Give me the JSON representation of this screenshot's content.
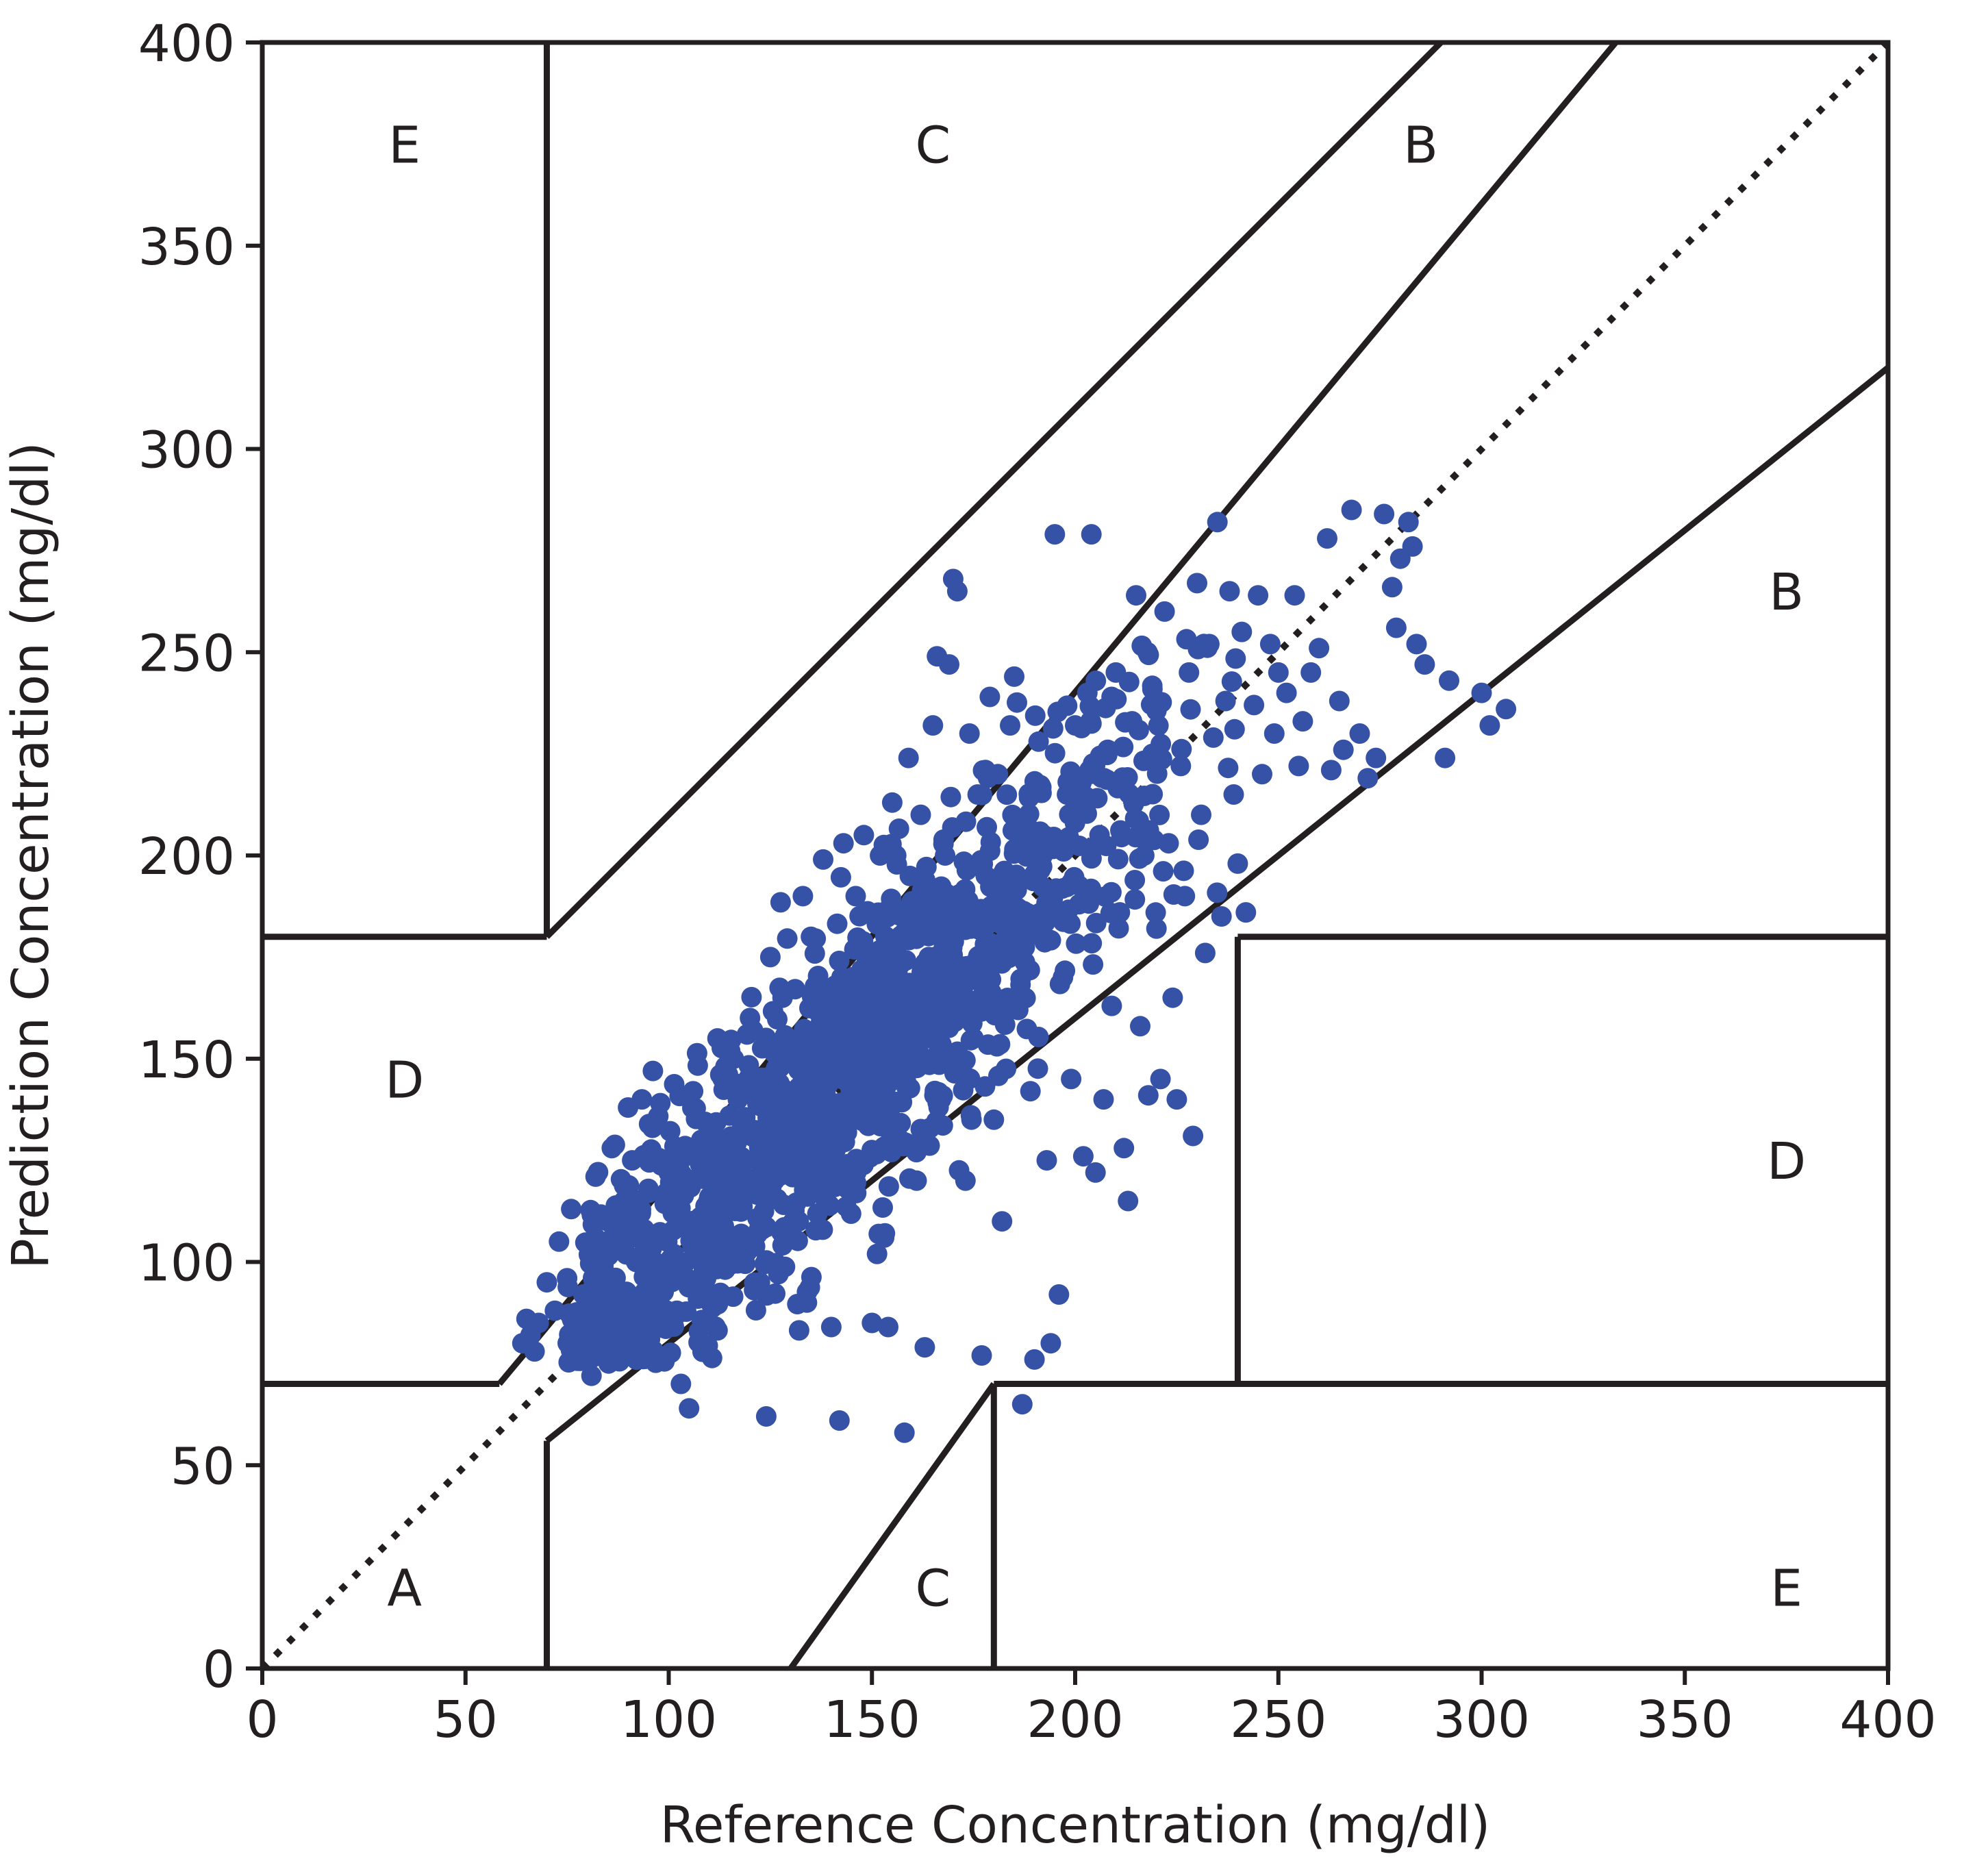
{
  "chart_data": {
    "type": "scatter",
    "title": "",
    "xlabel": "Reference Concentration (mg/dl)",
    "ylabel": "Prediction Concentration (mg/dl)",
    "xlim": [
      0,
      400
    ],
    "ylim": [
      0,
      400
    ],
    "xticks": [
      0,
      50,
      100,
      150,
      200,
      250,
      300,
      350,
      400
    ],
    "yticks": [
      0,
      50,
      100,
      150,
      200,
      250,
      300,
      350,
      400
    ],
    "grid": false,
    "colors": {
      "points": "#3652a6",
      "lines": "#231f20"
    },
    "identity_line": {
      "style": "dotted",
      "from": [
        0,
        0
      ],
      "to": [
        400,
        400
      ]
    },
    "zone_lines": [
      [
        [
          70,
          180
        ],
        [
          70,
          400
        ]
      ],
      [
        [
          0,
          180
        ],
        [
          70,
          180
        ]
      ],
      [
        [
          70,
          180
        ],
        [
          290,
          400
        ]
      ],
      [
        [
          70,
          84
        ],
        [
          333,
          400
        ]
      ],
      [
        [
          0,
          70
        ],
        [
          58.33,
          70
        ]
      ],
      [
        [
          58.33,
          70
        ],
        [
          70,
          84
        ]
      ],
      [
        [
          70,
          56
        ],
        [
          70,
          0
        ]
      ],
      [
        [
          70,
          56
        ],
        [
          400,
          320
        ]
      ],
      [
        [
          130,
          0
        ],
        [
          180,
          70
        ]
      ],
      [
        [
          180,
          70
        ],
        [
          180,
          0
        ]
      ],
      [
        [
          180,
          70
        ],
        [
          400,
          70
        ]
      ],
      [
        [
          240,
          70
        ],
        [
          240,
          180
        ]
      ],
      [
        [
          240,
          180
        ],
        [
          400,
          180
        ]
      ]
    ],
    "zone_labels": [
      {
        "text": "E",
        "x": 35,
        "y": 375
      },
      {
        "text": "C",
        "x": 165,
        "y": 375
      },
      {
        "text": "B",
        "x": 285,
        "y": 375
      },
      {
        "text": "B",
        "x": 375,
        "y": 265
      },
      {
        "text": "D",
        "x": 35,
        "y": 145
      },
      {
        "text": "D",
        "x": 375,
        "y": 125
      },
      {
        "text": "A",
        "x": 35,
        "y": 20
      },
      {
        "text": "C",
        "x": 165,
        "y": 20
      },
      {
        "text": "E",
        "x": 375,
        "y": 20
      }
    ],
    "points_manual": [
      [
        64,
        80
      ],
      [
        66,
        82
      ],
      [
        65,
        86
      ],
      [
        67,
        78
      ],
      [
        68,
        85
      ],
      [
        70,
        95
      ],
      [
        72,
        88
      ],
      [
        73,
        105
      ],
      [
        75,
        96
      ],
      [
        76,
        113
      ],
      [
        78,
        80
      ],
      [
        79,
        92
      ],
      [
        80,
        88
      ],
      [
        81,
        72
      ],
      [
        82,
        121
      ],
      [
        84,
        98
      ],
      [
        85,
        110
      ],
      [
        86,
        128
      ],
      [
        87,
        92
      ],
      [
        88,
        104
      ],
      [
        89,
        115
      ],
      [
        90,
        138
      ],
      [
        91,
        125
      ],
      [
        92,
        100
      ],
      [
        94,
        108
      ],
      [
        95,
        118
      ],
      [
        96,
        133
      ],
      [
        98,
        96
      ],
      [
        100,
        122
      ],
      [
        101,
        112
      ],
      [
        102,
        88
      ],
      [
        103,
        70
      ],
      [
        104,
        126
      ],
      [
        105,
        64
      ],
      [
        106,
        142
      ],
      [
        108,
        130
      ],
      [
        110,
        116
      ],
      [
        111,
        92
      ],
      [
        112,
        155
      ],
      [
        113,
        103
      ],
      [
        115,
        136
      ],
      [
        116,
        150
      ],
      [
        118,
        120
      ],
      [
        120,
        160
      ],
      [
        122,
        140
      ],
      [
        123,
        108
      ],
      [
        124,
        62
      ],
      [
        125,
        175
      ],
      [
        126,
        128
      ],
      [
        127,
        97
      ],
      [
        128,
        165
      ],
      [
        130,
        152
      ],
      [
        132,
        110
      ],
      [
        133,
        190
      ],
      [
        134,
        90
      ],
      [
        135,
        180
      ],
      [
        137,
        145
      ],
      [
        138,
        199
      ],
      [
        139,
        126
      ],
      [
        140,
        84
      ],
      [
        141,
        168
      ],
      [
        142,
        61
      ],
      [
        143,
        203
      ],
      [
        144,
        118
      ],
      [
        145,
        155
      ],
      [
        146,
        190
      ],
      [
        147,
        136
      ],
      [
        148,
        205
      ],
      [
        149,
        172
      ],
      [
        150,
        85
      ],
      [
        151,
        148
      ],
      [
        152,
        200
      ],
      [
        153,
        106
      ],
      [
        154,
        84
      ],
      [
        155,
        213
      ],
      [
        156,
        165
      ],
      [
        157,
        130
      ],
      [
        158,
        58
      ],
      [
        159,
        224
      ],
      [
        160,
        185
      ],
      [
        161,
        120
      ],
      [
        162,
        210
      ],
      [
        163,
        79
      ],
      [
        164,
        175
      ],
      [
        165,
        232
      ],
      [
        166,
        249
      ],
      [
        167,
        140
      ],
      [
        168,
        200
      ],
      [
        169,
        247
      ],
      [
        170,
        268
      ],
      [
        171,
        265
      ],
      [
        172,
        190
      ],
      [
        173,
        120
      ],
      [
        174,
        230
      ],
      [
        175,
        155
      ],
      [
        176,
        215
      ],
      [
        177,
        77
      ],
      [
        178,
        195
      ],
      [
        179,
        239
      ],
      [
        180,
        135
      ],
      [
        181,
        220
      ],
      [
        182,
        110
      ],
      [
        183,
        185
      ],
      [
        184,
        232
      ],
      [
        185,
        244
      ],
      [
        186,
        162
      ],
      [
        187,
        65
      ],
      [
        188,
        208
      ],
      [
        189,
        142
      ],
      [
        190,
        76
      ],
      [
        191,
        228
      ],
      [
        192,
        200
      ],
      [
        193,
        125
      ],
      [
        194,
        80
      ],
      [
        195,
        279
      ],
      [
        196,
        92
      ],
      [
        197,
        170
      ],
      [
        198,
        215
      ],
      [
        199,
        145
      ],
      [
        200,
        232
      ],
      [
        201,
        188
      ],
      [
        202,
        126
      ],
      [
        203,
        240
      ],
      [
        204,
        279
      ],
      [
        205,
        122
      ],
      [
        206,
        205
      ],
      [
        207,
        140
      ],
      [
        208,
        226
      ],
      [
        209,
        163
      ],
      [
        210,
        245
      ],
      [
        211,
        186
      ],
      [
        212,
        128
      ],
      [
        213,
        115
      ],
      [
        214,
        233
      ],
      [
        215,
        264
      ],
      [
        216,
        158
      ],
      [
        217,
        200
      ],
      [
        218,
        141
      ],
      [
        219,
        225
      ],
      [
        220,
        182
      ],
      [
        221,
        145
      ],
      [
        222,
        260
      ],
      [
        223,
        203
      ],
      [
        224,
        165
      ],
      [
        225,
        140
      ],
      [
        226,
        222
      ],
      [
        227,
        190
      ],
      [
        228,
        245
      ],
      [
        229,
        131
      ],
      [
        230,
        267
      ],
      [
        231,
        210
      ],
      [
        232,
        176
      ],
      [
        233,
        252
      ],
      [
        234,
        229
      ],
      [
        235,
        282
      ],
      [
        236,
        185
      ],
      [
        237,
        238
      ],
      [
        238,
        265
      ],
      [
        239,
        215
      ],
      [
        240,
        198
      ],
      [
        241,
        255
      ],
      [
        242,
        186
      ],
      [
        244,
        237
      ],
      [
        245,
        264
      ],
      [
        246,
        220
      ],
      [
        248,
        252
      ],
      [
        249,
        230
      ],
      [
        250,
        245
      ],
      [
        252,
        240
      ],
      [
        254,
        264
      ],
      [
        255,
        222
      ],
      [
        256,
        233
      ],
      [
        258,
        245
      ],
      [
        260,
        251
      ],
      [
        262,
        278
      ],
      [
        263,
        221
      ],
      [
        265,
        238
      ],
      [
        266,
        226
      ],
      [
        268,
        285
      ],
      [
        270,
        230
      ],
      [
        272,
        219
      ],
      [
        274,
        224
      ],
      [
        276,
        284
      ],
      [
        278,
        266
      ],
      [
        279,
        256
      ],
      [
        280,
        273
      ],
      [
        282,
        282
      ],
      [
        283,
        276
      ],
      [
        284,
        252
      ],
      [
        286,
        247
      ],
      [
        291,
        224
      ],
      [
        292,
        243
      ],
      [
        300,
        240
      ],
      [
        302,
        232
      ],
      [
        306,
        236
      ]
    ]
  }
}
